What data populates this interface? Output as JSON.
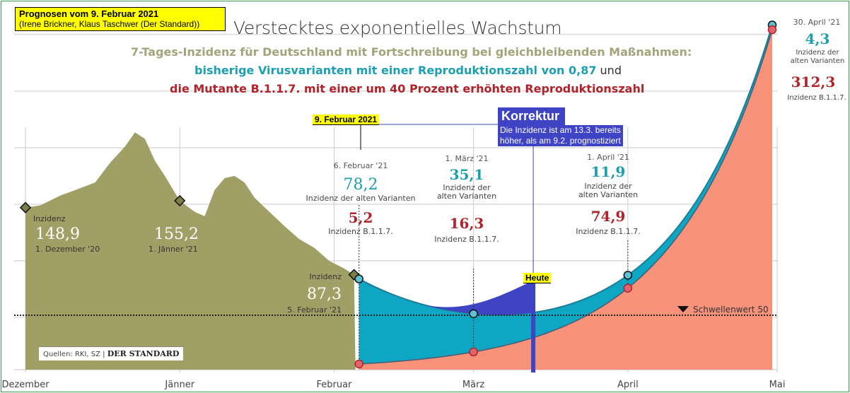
{
  "note": {
    "title": "Prognosen vom 9. Februar 2021",
    "subtitle": "(Irene Brickner, Klaus Taschwer (Der Standard))"
  },
  "header": {
    "title": "Verstecktes exponentielles Wachstum",
    "line1": "7-Tages-Inzidenz für Deutschland mit Fortschreibung bei gleichbleibenden Maßnahmen:",
    "line2a": "bisherige Virusvarianten mit einer Reproduktionszahl von 0,87",
    "line2b": " und",
    "line3": "die Mutante B.1.1.7. mit einer um 40 Prozent erhöhten Reproduktionszahl"
  },
  "annotations": {
    "feb9_label": "9. Februar 2021",
    "heute_label": "Heute",
    "korrektur_title": "Korrektur",
    "korrektur_line1": "Die Inzidenz ist am 13.3. bereits",
    "korrektur_line2": "höher, als am 9.2. prognostiziert"
  },
  "source": {
    "text": "Quellen: RKI, SZ",
    "brand": "DER STANDARD"
  },
  "colors": {
    "history": "#a0a066",
    "old_variants": "#0fa6c4",
    "b117": "#f7927a",
    "korrektur": "#3f44c4",
    "old_text": "#1c9fb0",
    "b117_text": "#b0232a",
    "subtitle_olive": "#a3a47a"
  },
  "chart_data": {
    "type": "area",
    "title": "Verstecktes exponentielles Wachstum",
    "xlabel": "",
    "ylabel": "7-Tages-Inzidenz",
    "x_unit": "days since 1. Dezember 2020",
    "x_ticks": [
      {
        "day": 0,
        "label": "Dezember"
      },
      {
        "day": 31,
        "label": "Jänner"
      },
      {
        "day": 62,
        "label": "Februar"
      },
      {
        "day": 90,
        "label": "März"
      },
      {
        "day": 121,
        "label": "April"
      },
      {
        "day": 151,
        "label": "Mai"
      }
    ],
    "ylim": [
      0,
      320
    ],
    "threshold": {
      "value": 50,
      "label": "Schwellenwert 50"
    },
    "history": {
      "name": "Inzidenz",
      "points": [
        [
          0,
          148.9
        ],
        [
          3,
          151
        ],
        [
          7,
          160
        ],
        [
          10,
          165
        ],
        [
          14,
          172
        ],
        [
          17,
          190
        ],
        [
          20,
          205
        ],
        [
          22,
          218
        ],
        [
          24,
          212
        ],
        [
          26,
          192
        ],
        [
          28,
          178
        ],
        [
          31,
          155.2
        ],
        [
          34,
          145
        ],
        [
          36,
          141
        ],
        [
          38,
          165
        ],
        [
          40,
          176
        ],
        [
          42,
          178
        ],
        [
          44,
          172
        ],
        [
          46,
          158
        ],
        [
          49,
          145
        ],
        [
          52,
          132
        ],
        [
          55,
          120
        ],
        [
          58,
          112
        ],
        [
          61,
          100
        ],
        [
          64,
          93
        ],
        [
          66,
          87.3
        ]
      ]
    },
    "series": [
      {
        "name": "Inzidenz B.1.1.7.",
        "points": [
          [
            67,
            5.2
          ],
          [
            90,
            16.3
          ],
          [
            121,
            74.9
          ],
          [
            150,
            312.3
          ]
        ]
      },
      {
        "name": "Inzidenz der alten Varianten",
        "points": [
          [
            67,
            78.2
          ],
          [
            90,
            35.1
          ],
          [
            121,
            11.9
          ],
          [
            150,
            4.3
          ]
        ]
      }
    ],
    "korrektur": {
      "from_day": 67,
      "to_day": 102,
      "actual_end_total": 82
    },
    "labels": [
      {
        "date": "1. Dezember '20",
        "value": "148,9",
        "caption": "Inzidenz"
      },
      {
        "date": "1. Jänner '21",
        "value": "155,2"
      },
      {
        "date": "5. Februar '21",
        "value": "87,3",
        "caption": "Inzidenz"
      },
      {
        "date": "6. Februar '21",
        "old": "78,2",
        "old_caption": "Inzidenz der alten Varianten",
        "b117": "5,2",
        "b117_caption": "Inzidenz B.1.1.7."
      },
      {
        "date": "1. März '21",
        "old": "35,1",
        "old_caption1": "Inzidenz der",
        "old_caption2": "alten Varianten",
        "b117": "16,3",
        "b117_caption": "Inzidenz B.1.1.7."
      },
      {
        "date": "1. April '21",
        "old": "11,9",
        "old_caption1": "Inzidenz der",
        "old_caption2": "alten Varianten",
        "b117": "74,9",
        "b117_caption": "Inzidenz B.1.1.7."
      },
      {
        "date": "30. April '21",
        "old": "4,3",
        "old_caption1": "Inzidenz der",
        "old_caption2": "alten Varianten",
        "b117": "312,3",
        "b117_caption": "Inzidenz B.1.1.7."
      }
    ]
  }
}
